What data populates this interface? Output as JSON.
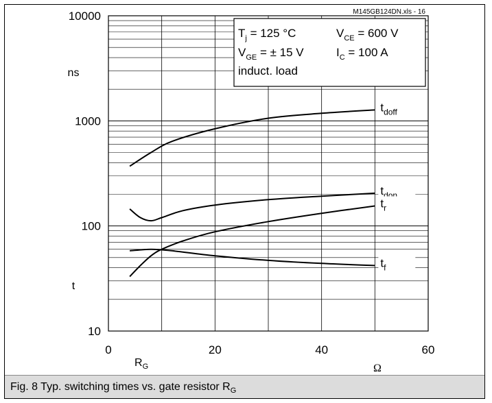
{
  "chart_data": {
    "type": "line",
    "file_label": "M145GB124DN.xls - 16",
    "x_axis": {
      "label_main": "R",
      "label_sub": "G",
      "unit": "Ω",
      "range": [
        0,
        60
      ],
      "ticks": [
        "0",
        "20",
        "40",
        "60"
      ]
    },
    "y_axis": {
      "scale": "log",
      "range": [
        10,
        10000
      ],
      "unit": "ns",
      "quantity": "t",
      "ticks": [
        "10",
        "100",
        "1000",
        "10000"
      ]
    },
    "conditions": {
      "line1_a": "T",
      "line1_a_sub": "j",
      "line1_a_rest": " = 125 °C",
      "line1_b": "V",
      "line1_b_sub": "CE",
      "line1_b_rest": " = 600 V",
      "line2_a": "V",
      "line2_a_sub": "GE",
      "line2_a_rest": " = ± 15 V",
      "line2_b": "I",
      "line2_b_sub": "C",
      "line2_b_rest": " = 100 A",
      "line3": "induct. load"
    },
    "grid": true,
    "series": [
      {
        "name": "t",
        "sub": "doff",
        "x": [
          4,
          8,
          12,
          20,
          30,
          40,
          50
        ],
        "y": [
          370,
          500,
          640,
          840,
          1060,
          1180,
          1270
        ]
      },
      {
        "name": "t",
        "sub": "don",
        "x": [
          4,
          6,
          8,
          10,
          14,
          20,
          30,
          40,
          50
        ],
        "y": [
          145,
          120,
          112,
          120,
          140,
          158,
          178,
          192,
          205
        ]
      },
      {
        "name": "t",
        "sub": "r",
        "x": [
          4,
          6,
          8,
          10,
          14,
          20,
          30,
          40,
          50
        ],
        "y": [
          33,
          42,
          52,
          60,
          72,
          88,
          110,
          132,
          155
        ]
      },
      {
        "name": "t",
        "sub": "f",
        "x": [
          4,
          8,
          12,
          20,
          30,
          40,
          50
        ],
        "y": [
          58,
          60,
          58,
          52,
          47,
          44,
          42
        ]
      }
    ]
  },
  "caption": {
    "text": "Fig. 8 Typ. switching times vs. gate resistor R",
    "sub": "G"
  }
}
